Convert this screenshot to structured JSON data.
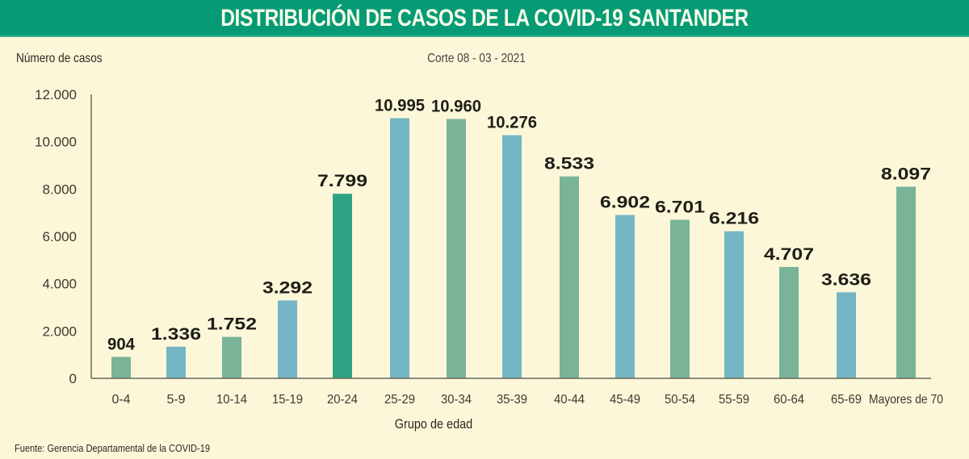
{
  "header": {
    "title": "DISTRIBUCIÓN DE CASOS DE LA COVID-19 SANTANDER"
  },
  "footer": {
    "source": "Fuente:  Gerencia Departamental de la COVID-19"
  },
  "colors": {
    "banner": "#069a75",
    "background": "#fdf7d9",
    "bar_green": "#79b398",
    "bar_blue": "#74b5c6",
    "bar_highlight": "#2ea283"
  },
  "chart_data": {
    "type": "bar",
    "title": "DISTRIBUCIÓN DE CASOS DE LA COVID-19 SANTANDER",
    "subtitle": "Corte 08 - 03 - 2021",
    "xlabel": "Grupo de edad",
    "ylabel": "Número de casos",
    "ylim": [
      0,
      12000
    ],
    "yticks": [
      0,
      2000,
      4000,
      6000,
      8000,
      10000,
      12000
    ],
    "ytick_labels": [
      "0",
      "2.000",
      "4.000",
      "6.000",
      "8.000",
      "10.000",
      "12.000"
    ],
    "grid": false,
    "categories": [
      "0-4",
      "5-9",
      "10-14",
      "15-19",
      "20-24",
      "25-29",
      "30-34",
      "35-39",
      "40-44",
      "45-49",
      "50-54",
      "55-59",
      "60-64",
      "65-69",
      "Mayores de 70"
    ],
    "values": [
      904,
      1336,
      1752,
      3292,
      7799,
      10995,
      10960,
      10276,
      8533,
      6902,
      6701,
      6216,
      4707,
      3636,
      8097
    ],
    "value_labels": [
      "904",
      "1.336",
      "1.752",
      "3.292",
      "7.799",
      "10.995",
      "10.960",
      "10.276",
      "8.533",
      "6.902",
      "6.701",
      "6.216",
      "4.707",
      "3.636",
      "8.097"
    ],
    "bar_colors": [
      "green",
      "blue",
      "green",
      "blue",
      "highlight",
      "blue",
      "green",
      "blue",
      "green",
      "blue",
      "green",
      "blue",
      "green",
      "blue",
      "green"
    ]
  }
}
